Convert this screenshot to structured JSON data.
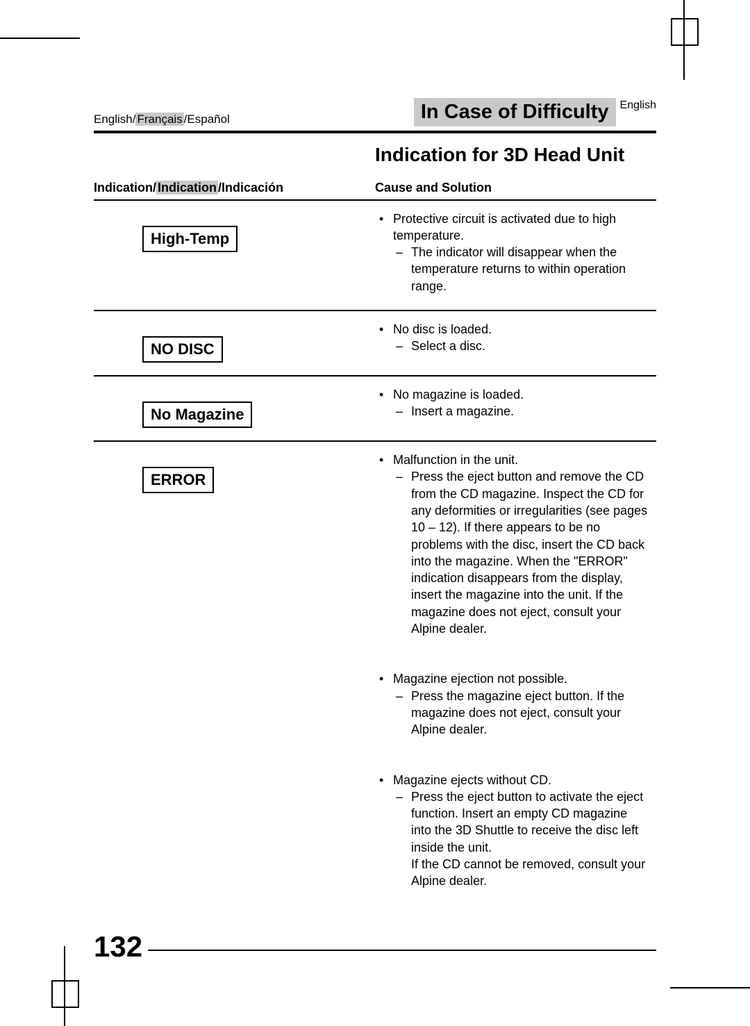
{
  "header": {
    "section_title": "In Case of Difficulty",
    "lang_tag": "English",
    "lang_line_a": "English/",
    "lang_line_b": "Français",
    "lang_line_c": "/Español"
  },
  "subtitle": "Indication for 3D Head Unit",
  "columns": {
    "left_a": "Indication/",
    "left_b": "Indication",
    "left_c": "/Indicación",
    "right": "Cause and Solution"
  },
  "rows": [
    {
      "indicator": "High-Temp",
      "cause": "Protective circuit is activated due to high temperature.",
      "solution": "The indicator will disappear when the temperature returns to within operation range."
    },
    {
      "indicator": "NO DISC",
      "cause": "No disc is loaded.",
      "solution": "Select a disc."
    },
    {
      "indicator": "No Magazine",
      "cause": "No magazine is loaded.",
      "solution": "Insert a magazine."
    },
    {
      "indicator": "ERROR",
      "cause": "Malfunction in the unit.",
      "solution": "Press the eject button and remove the CD from the CD magazine. Inspect the CD for any deformities or irregularities (see pages 10 – 12). If there appears to be no problems with the disc, insert the CD back into the magazine. When the \"ERROR\" indication disappears from the display, insert the magazine into the unit. If the magazine does not eject, consult your Alpine dealer."
    }
  ],
  "extras": [
    {
      "cause": "Magazine ejection not possible.",
      "solution": "Press the magazine eject button. If the magazine does not eject, consult your Alpine dealer."
    },
    {
      "cause": "Magazine ejects without CD.",
      "solution": "Press the eject button to activate the eject function. Insert an empty CD magazine into the 3D Shuttle to receive the disc left inside the unit.",
      "solution_extra": "If the CD cannot be removed, consult your Alpine dealer."
    }
  ],
  "page_number": "132",
  "colors": {
    "highlight_bg": "#c9c9c9",
    "text": "#000000",
    "page_bg": "#ffffff"
  },
  "typography": {
    "base_font": "Arial, Helvetica, sans-serif",
    "section_title_size_pt": 22,
    "subtitle_size_pt": 21,
    "body_size_pt": 13,
    "indicator_size_pt": 16,
    "page_number_size_pt": 32
  }
}
